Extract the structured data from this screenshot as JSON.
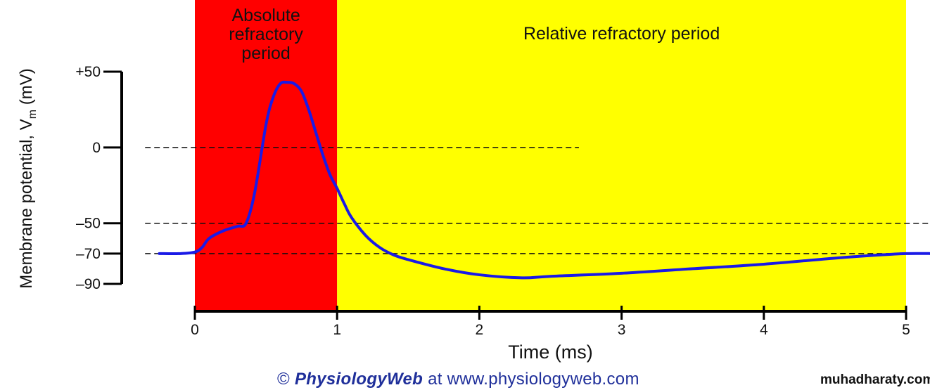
{
  "chart_data": {
    "type": "line",
    "xlabel": "Time (ms)",
    "ylabel": "Membrane potential, V",
    "ylabel_subscript": "m",
    "ylabel_unit": "(mV)",
    "xlim": [
      0,
      5
    ],
    "ylim": [
      -90,
      50
    ],
    "x_ticks": [
      "0",
      "1",
      "2",
      "3",
      "4",
      "5"
    ],
    "y_ticks": [
      "+50",
      "0",
      "–50",
      "–70",
      "–90"
    ],
    "y_tick_values": [
      50,
      0,
      -50,
      -70,
      -90
    ],
    "regions": [
      {
        "label_lines": [
          "Absolute",
          "refractory",
          "period"
        ],
        "x_start": 0,
        "x_end": 1,
        "color": "#ff0000"
      },
      {
        "label_lines": [
          "Relative refractory period"
        ],
        "x_start": 1,
        "x_end": 5,
        "color": "#ffff00"
      }
    ],
    "reference_lines": [
      {
        "y": 0,
        "x_start": -0.35,
        "x_end": 2.7
      },
      {
        "y": -50,
        "x_start": -0.35,
        "x_end": 5.2
      },
      {
        "y": -70,
        "x_start": -0.35,
        "x_end": 5.2
      }
    ],
    "series": [
      {
        "color": "#1a1ae6",
        "x": [
          -0.25,
          -0.1,
          0.0,
          0.05,
          0.1,
          0.2,
          0.3,
          0.36,
          0.42,
          0.5,
          0.55,
          0.6,
          0.65,
          0.7,
          0.75,
          0.8,
          0.85,
          0.9,
          0.95,
          1.0,
          1.05,
          1.1,
          1.2,
          1.3,
          1.4,
          1.5,
          1.75,
          2.0,
          2.3,
          2.5,
          3.0,
          3.5,
          4.0,
          4.5,
          4.8,
          5.0,
          5.2
        ],
        "y": [
          -70,
          -70,
          -69,
          -66,
          -60,
          -55,
          -52,
          -50,
          -30,
          15,
          33,
          42,
          43,
          42,
          37,
          25,
          10,
          -5,
          -18,
          -27,
          -37,
          -46,
          -58,
          -66,
          -71,
          -74,
          -80,
          -84,
          -86,
          -85,
          -83,
          -80,
          -77,
          -73,
          -71,
          -70,
          -70
        ]
      }
    ],
    "grid": false
  },
  "credit": {
    "symbol": "©",
    "brand": "PhysiologyWeb",
    "rest": " at www.physiologyweb.com"
  },
  "watermark": "muhadharaty.com"
}
